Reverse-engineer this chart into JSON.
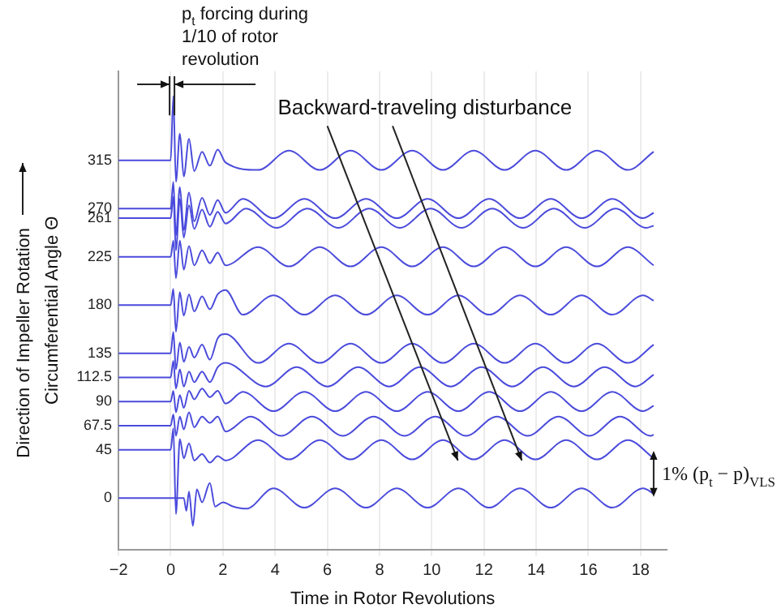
{
  "chart_data": {
    "type": "line",
    "xlabel": "Time in Rotor Revolutions",
    "ylabel": "Circumferential Angle Θ",
    "annotations": [
      {
        "text": "p$_{t}$ forcing during 1/10 of rotor revolution",
        "x": 0.05,
        "y": 357
      },
      "Backward-traveling disturbance",
      "1% (p$_{t}$ − p)$_{VLS}$",
      "Direction of Impeller Rotation"
    ],
    "xlim": [
      -2,
      19
    ],
    "ylim": [
      -48,
      398
    ],
    "xticks": [
      {
        "value": -2,
        "label": "−2"
      },
      0,
      2,
      4,
      6,
      8,
      10,
      12,
      14,
      16,
      18
    ],
    "yticks": [
      0,
      45,
      67.5,
      90,
      112.5,
      135,
      180,
      225,
      261,
      270,
      315
    ],
    "grid": "x",
    "series": [
      {
        "color": "#4b4bdc",
        "x": [
          -2,
          0,
          0.1,
          0.2,
          0.35,
          0.5,
          0.7,
          0.9,
          1.2,
          1.5,
          1.8,
          2.1,
          3.35,
          4.53,
          5.71,
          6.89,
          8.07,
          9.25,
          10.43,
          11.61,
          12.79,
          13.97,
          15.15,
          16.33,
          17.51,
          18.5
        ],
        "values": [
          315,
          315,
          375,
          295,
          340,
          300,
          335,
          305,
          323,
          310,
          325,
          313,
          306,
          324,
          306,
          324,
          306,
          324,
          306,
          324,
          306,
          324,
          306,
          324,
          306,
          323
        ]
      },
      {
        "color": "#4b4bdc",
        "x": [
          -2,
          0,
          0.1,
          0.2,
          0.35,
          0.5,
          0.7,
          0.9,
          1.2,
          1.5,
          1.8,
          2.1,
          2.76,
          3.94,
          5.12,
          6.3,
          7.48,
          8.66,
          9.84,
          11.02,
          12.2,
          13.38,
          14.56,
          15.74,
          16.92,
          18.1,
          18.5
        ],
        "values": [
          270,
          270,
          295,
          245,
          290,
          250,
          285,
          258,
          280,
          264,
          278,
          266,
          279,
          261,
          279,
          261,
          279,
          261,
          279,
          261,
          279,
          261,
          279,
          261,
          279,
          261,
          266
        ]
      },
      {
        "color": "#4b4bdc",
        "x": [
          -2,
          0,
          0.1,
          0.2,
          0.35,
          0.5,
          0.7,
          0.9,
          1.2,
          1.5,
          1.8,
          2.1,
          2.878,
          4.058,
          5.238,
          6.418,
          7.598,
          8.778,
          9.958,
          11.138,
          12.318,
          13.498,
          14.678,
          15.858,
          17.038,
          18.218,
          18.5
        ],
        "values": [
          261,
          261,
          281,
          231,
          279,
          243,
          273,
          251,
          269,
          253,
          267,
          256,
          270,
          252,
          270,
          252,
          270,
          252,
          270,
          252,
          270,
          252,
          270,
          252,
          270,
          252,
          254
        ]
      },
      {
        "color": "#4b4bdc",
        "x": [
          -2,
          0,
          0.1,
          0.2,
          0.35,
          0.5,
          0.7,
          0.9,
          1.2,
          1.5,
          1.8,
          2.1,
          3.35,
          4.53,
          5.71,
          6.89,
          8.07,
          9.25,
          10.43,
          11.61,
          12.79,
          13.97,
          15.15,
          16.33,
          17.51,
          18.5
        ],
        "values": [
          225,
          225,
          240,
          205,
          240,
          213,
          235,
          217,
          231,
          219,
          229,
          217,
          234,
          216,
          234,
          216,
          234,
          216,
          234,
          216,
          234,
          216,
          234,
          216,
          234,
          217
        ]
      },
      {
        "color": "#4b4bdc",
        "x": [
          -2,
          0,
          0.1,
          0.2,
          0.35,
          0.5,
          0.7,
          0.9,
          1.2,
          1.5,
          1.8,
          2.1,
          2.76,
          3.94,
          5.12,
          6.3,
          7.48,
          8.66,
          9.84,
          11.02,
          12.2,
          13.38,
          14.56,
          15.74,
          16.92,
          18.1,
          18.5
        ],
        "values": [
          180,
          180,
          195,
          155,
          192,
          170,
          190,
          174,
          188,
          176,
          190,
          194,
          171,
          189,
          171,
          189,
          171,
          189,
          171,
          189,
          171,
          189,
          171,
          189,
          171,
          189,
          184
        ]
      },
      {
        "color": "#4b4bdc",
        "x": [
          -2,
          0,
          0.1,
          0.2,
          0.35,
          0.5,
          0.7,
          0.9,
          1.2,
          1.5,
          1.8,
          2.1,
          3.35,
          4.53,
          5.71,
          6.89,
          8.07,
          9.25,
          10.43,
          11.61,
          12.79,
          13.97,
          15.15,
          16.33,
          17.51,
          18.5
        ],
        "values": [
          135,
          135,
          155,
          120,
          145,
          127,
          141,
          131,
          143,
          129,
          149,
          153,
          126,
          144,
          126,
          144,
          126,
          144,
          126,
          144,
          126,
          144,
          126,
          144,
          126,
          143
        ]
      },
      {
        "color": "#4b4bdc",
        "x": [
          -2,
          0,
          0.1,
          0.2,
          0.35,
          0.5,
          0.7,
          0.9,
          1.2,
          1.5,
          1.8,
          2.1,
          3.645,
          4.825,
          6.005,
          7.185,
          8.365,
          9.545,
          10.725,
          11.905,
          13.085,
          14.265,
          15.445,
          16.625,
          17.805,
          18.5
        ],
        "values": [
          112.5,
          112.5,
          128,
          102,
          120,
          104,
          118,
          108,
          118,
          108,
          122,
          126,
          104,
          122,
          104,
          122,
          104,
          122,
          104,
          122,
          104,
          122,
          104,
          122,
          104,
          115
        ]
      },
      {
        "color": "#4b4bdc",
        "x": [
          -2,
          0,
          0.1,
          0.2,
          0.35,
          0.5,
          0.7,
          0.9,
          1.2,
          1.5,
          1.8,
          2.1,
          2.76,
          3.94,
          5.12,
          6.3,
          7.48,
          8.66,
          9.84,
          11.02,
          12.2,
          13.38,
          14.56,
          15.74,
          16.92,
          18.1,
          18.5
        ],
        "values": [
          90,
          90,
          100,
          80,
          96,
          84,
          100,
          92,
          102,
          94,
          100,
          88,
          99,
          81,
          99,
          81,
          99,
          81,
          99,
          81,
          99,
          81,
          99,
          81,
          99,
          81,
          86
        ]
      },
      {
        "color": "#4b4bdc",
        "x": [
          -2,
          0,
          0.1,
          0.2,
          0.35,
          0.5,
          0.7,
          0.9,
          1.2,
          1.5,
          1.8,
          2.1,
          3.055,
          4.235,
          5.415,
          6.595,
          7.775,
          8.955,
          10.135,
          11.315,
          12.495,
          13.675,
          14.855,
          16.035,
          17.215,
          18.395,
          18.5
        ],
        "values": [
          67.5,
          67.5,
          78,
          58,
          76,
          64,
          80,
          66,
          76,
          70,
          76,
          62,
          76,
          58,
          76,
          58,
          76,
          58,
          76,
          58,
          76,
          58,
          76,
          58,
          76,
          58,
          59
        ]
      },
      {
        "color": "#4b4bdc",
        "x": [
          -2,
          0,
          0.1,
          0.2,
          0.35,
          0.5,
          0.7,
          0.9,
          1.2,
          1.5,
          1.8,
          2.1,
          3.35,
          4.53,
          5.71,
          6.89,
          8.07,
          9.25,
          10.43,
          11.61,
          12.79,
          13.97,
          15.15,
          16.33,
          17.51,
          18.5
        ],
        "values": [
          45,
          45,
          65,
          -15,
          55,
          37,
          51,
          35,
          41,
          33,
          39,
          35,
          54,
          36,
          54,
          36,
          54,
          36,
          54,
          36,
          54,
          36,
          54,
          36,
          54,
          37
        ]
      },
      {
        "color": "#4b4bdc",
        "x": [
          -2,
          0.5,
          0.6,
          0.7,
          0.85,
          1,
          1.2,
          1.5,
          1.7,
          2,
          2.4,
          2.9,
          3.94,
          5.12,
          6.3,
          7.48,
          8.66,
          9.84,
          11.02,
          12.2,
          13.38,
          14.56,
          15.74,
          16.92,
          18.1,
          18.5
        ],
        "values": [
          0,
          0,
          -12,
          6,
          -26,
          8,
          -4,
          14,
          -8,
          -4,
          -8,
          -10,
          9,
          -9,
          9,
          -9,
          9,
          -9,
          9,
          -9,
          9,
          -9,
          9,
          -9,
          9,
          4
        ]
      }
    ]
  }
}
